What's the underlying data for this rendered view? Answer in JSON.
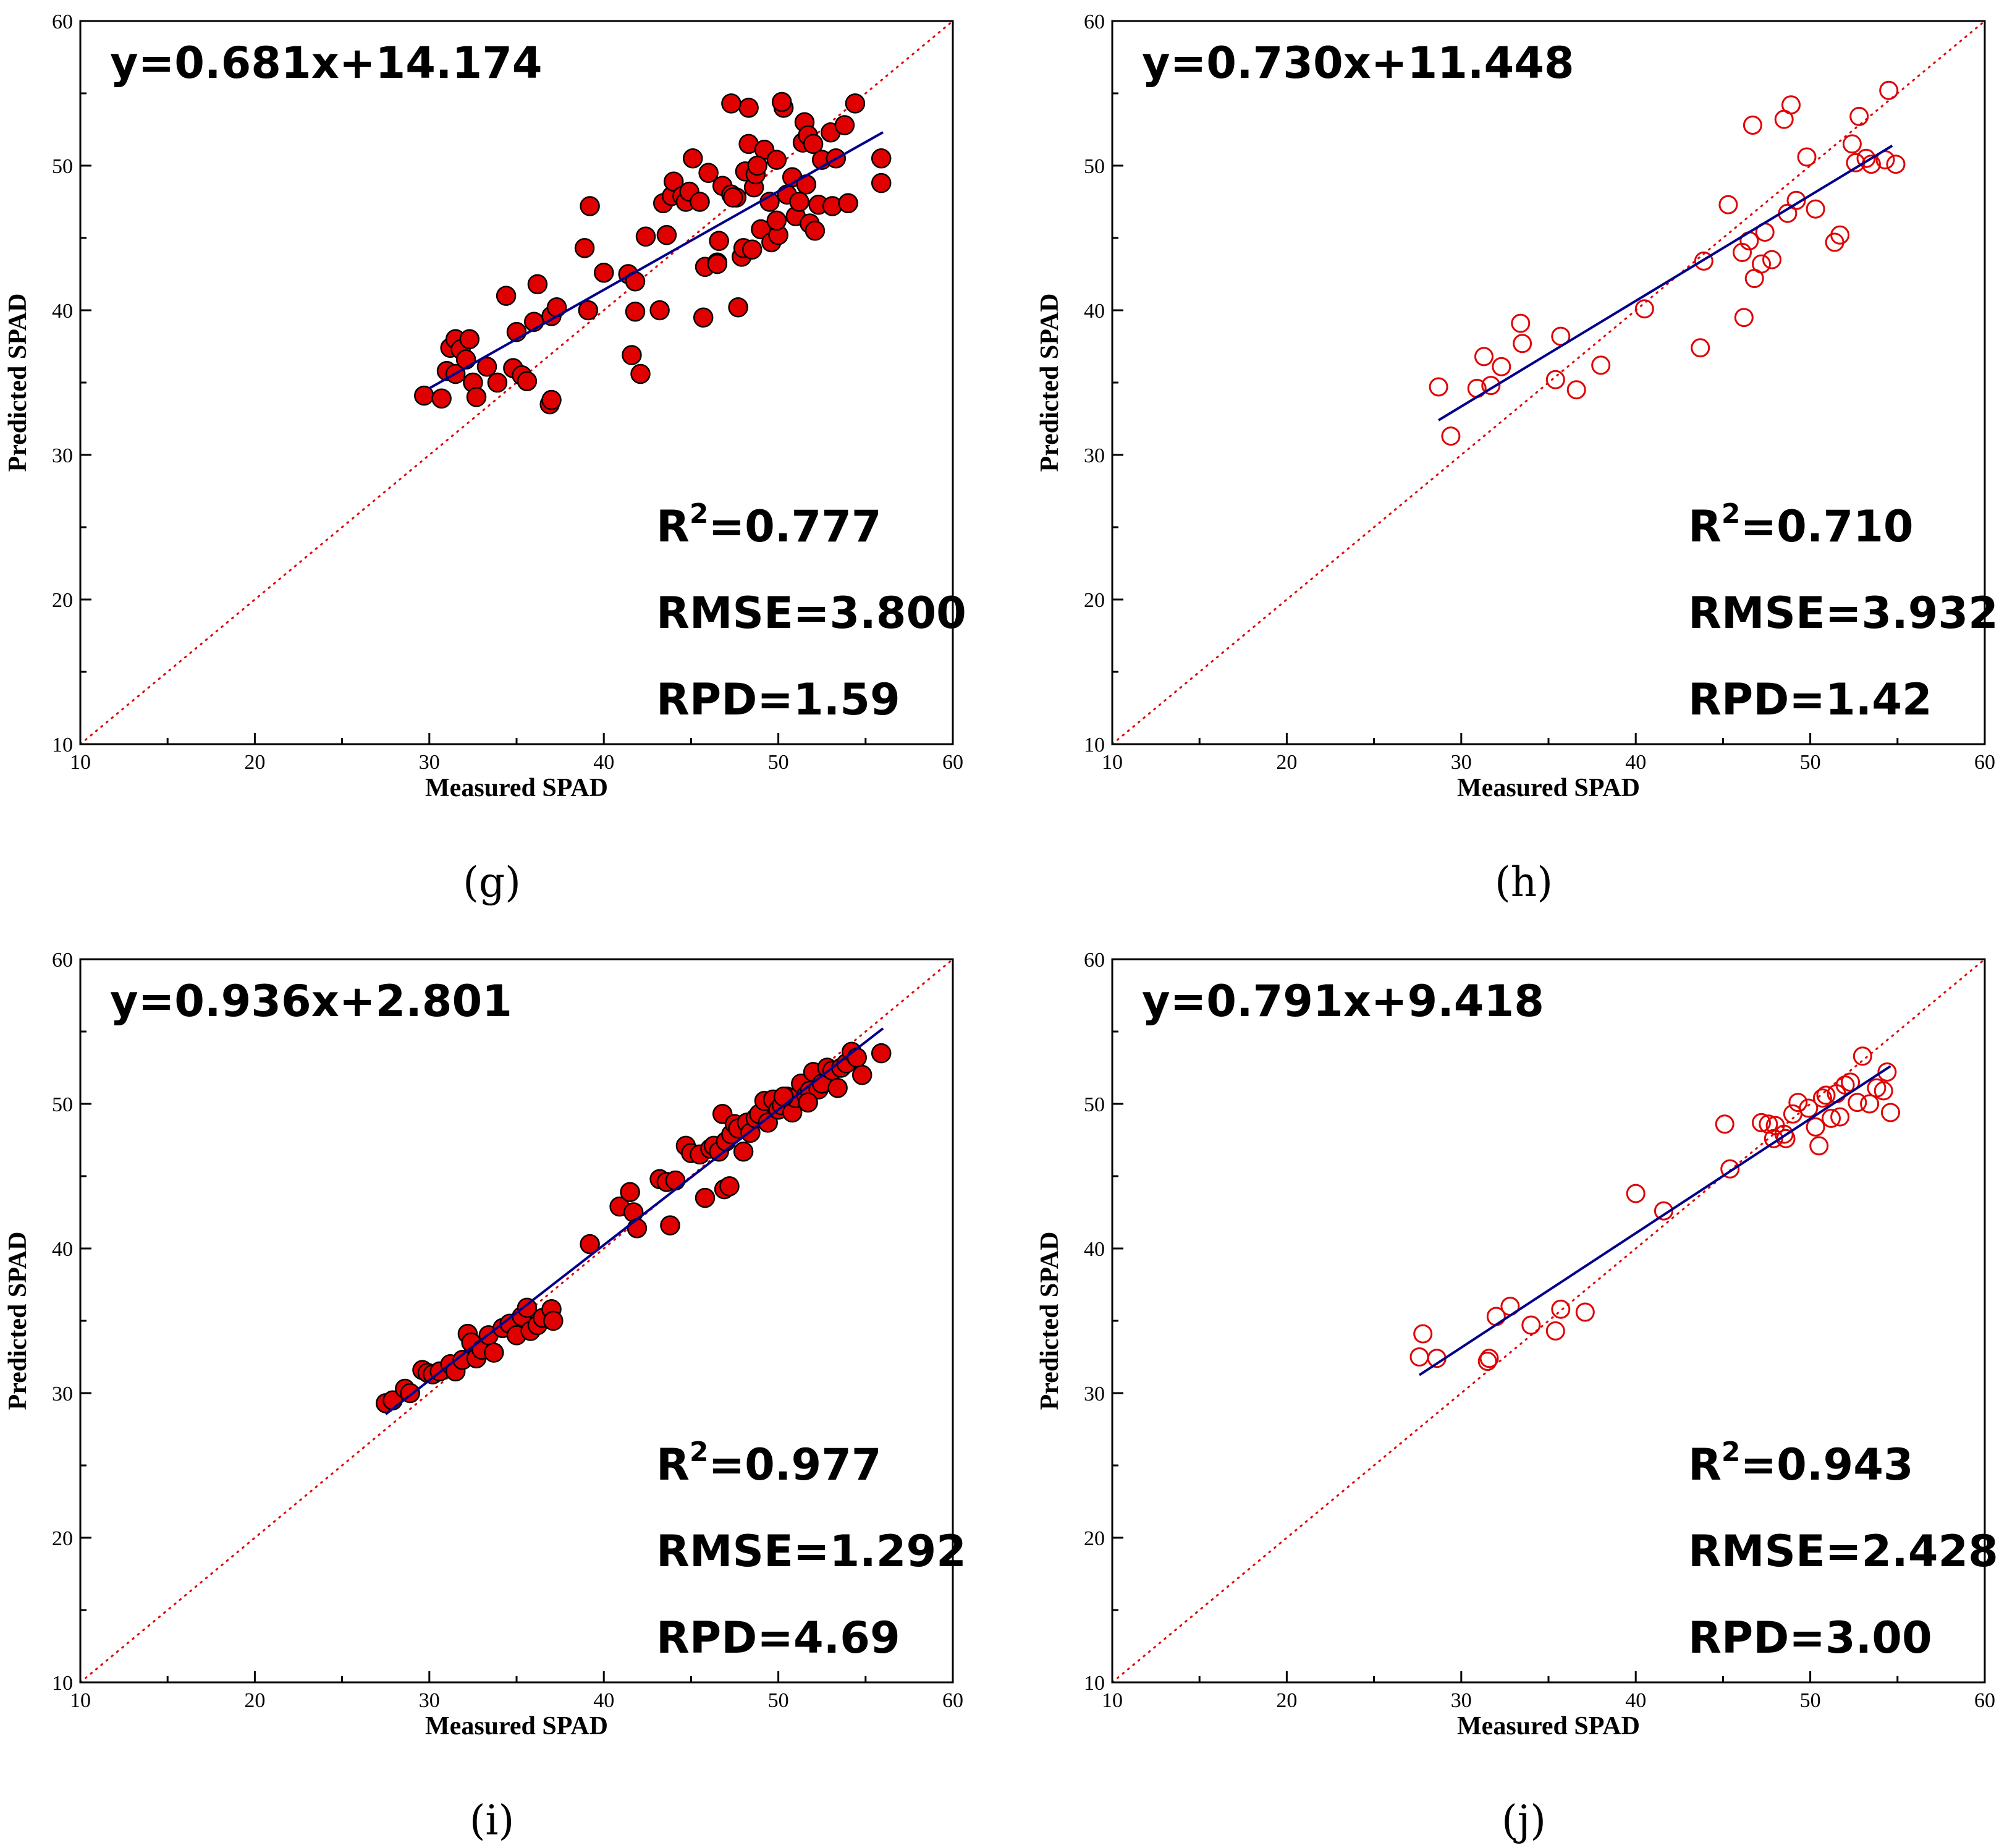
{
  "colors": {
    "point_fill": "#e00000",
    "point_stroke_filled": "#000000",
    "point_stroke_open": "#e00000",
    "fit_line": "#00008b",
    "identity_line": "#e00000",
    "frame": "#000000"
  },
  "chart_data": [
    {
      "panel_label": "(g)",
      "type": "scatter",
      "marker": "filled",
      "xlabel": "Measured SPAD",
      "ylabel": "Predicted SPAD",
      "xlim": [
        10,
        60
      ],
      "ylim": [
        10,
        60
      ],
      "xticks": [
        "10",
        "20",
        "30",
        "40",
        "50",
        "60"
      ],
      "yticks": [
        "10",
        "20",
        "30",
        "40",
        "50",
        "60"
      ],
      "equation": "y=0.681x+14.174",
      "slope": 0.681,
      "intercept": 14.174,
      "fit_x_range": [
        30,
        56
      ],
      "r2_label": "R",
      "r2_sup": "2",
      "r2_value": "=0.777",
      "rmse": "RMSE=3.800",
      "rpd": "RPD=1.59",
      "x": [
        29.7,
        30.7,
        31.0,
        31.2,
        31.5,
        31.5,
        31.8,
        32.1,
        32.3,
        32.5,
        32.7,
        33.3,
        33.9,
        34.4,
        34.8,
        35.0,
        35.3,
        35.6,
        36.0,
        36.2,
        36.9,
        37.0,
        37.0,
        38.9,
        39.1,
        39.2,
        40.0,
        41.4,
        41.6,
        41.8,
        42.1,
        42.4,
        43.2,
        43.4,
        43.6,
        43.9,
        44.0,
        44.5,
        44.7,
        44.9,
        45.1,
        45.5,
        45.7,
        45.8,
        46.0,
        46.5,
        46.6,
        46.8,
        47.3,
        47.6,
        47.7,
        47.9,
        48.0,
        48.1,
        48.3,
        48.5,
        48.6,
        48.7,
        49.0,
        49.2,
        49.5,
        49.6,
        49.9,
        50.0,
        50.3,
        50.5,
        50.8,
        51.0,
        51.2,
        51.4,
        51.5,
        51.6,
        51.7,
        51.8,
        52.0,
        52.1,
        52.3,
        52.5,
        53.0,
        53.1,
        53.3,
        53.8,
        54.0,
        54.4,
        55.9,
        55.9,
        48.3,
        50.2,
        47.3,
        48.8,
        47.4,
        49.9,
        37.3,
        41.8,
        46.5
      ],
      "y": [
        34.1,
        33.9,
        35.8,
        37.4,
        35.6,
        38.0,
        37.3,
        36.6,
        38.0,
        35.0,
        34.0,
        36.1,
        35.0,
        41.0,
        36.0,
        38.5,
        35.5,
        35.1,
        39.2,
        41.8,
        33.5,
        33.8,
        39.6,
        44.3,
        40.0,
        47.2,
        42.6,
        42.5,
        36.9,
        39.9,
        35.6,
        45.1,
        40.0,
        47.4,
        45.2,
        47.9,
        48.9,
        47.9,
        47.5,
        48.2,
        50.5,
        47.5,
        39.5,
        43.0,
        49.5,
        43.3,
        44.8,
        48.6,
        48.0,
        47.8,
        40.2,
        43.7,
        44.3,
        49.6,
        51.5,
        44.2,
        48.5,
        49.4,
        45.6,
        51.1,
        47.5,
        44.7,
        50.4,
        45.2,
        54.0,
        48.0,
        49.2,
        46.5,
        47.5,
        51.6,
        53.0,
        48.7,
        52.1,
        46.0,
        51.5,
        45.5,
        47.3,
        50.4,
        52.3,
        47.2,
        50.5,
        52.8,
        47.4,
        54.3,
        50.5,
        48.8,
        54.0,
        54.4,
        54.3,
        50.0,
        47.8,
        46.2,
        40.2,
        42.0,
        43.2
      ]
    },
    {
      "panel_label": "(h)",
      "type": "scatter",
      "marker": "open",
      "xlabel": "Measured SPAD",
      "ylabel": "Predicted SPAD",
      "xlim": [
        10,
        60
      ],
      "ylim": [
        10,
        60
      ],
      "xticks": [
        "10",
        "20",
        "30",
        "40",
        "50",
        "60"
      ],
      "yticks": [
        "10",
        "20",
        "30",
        "40",
        "50",
        "60"
      ],
      "equation": "y=0.730x+11.448",
      "slope": 0.73,
      "intercept": 11.448,
      "fit_x_range": [
        28.7,
        54.7
      ],
      "r2_label": "R",
      "r2_sup": "2",
      "r2_value": "=0.710",
      "rmse": "RMSE=3.932",
      "rpd": "RPD=1.42",
      "x": [
        28.7,
        29.4,
        30.9,
        31.3,
        31.7,
        32.3,
        33.4,
        33.5,
        35.4,
        35.7,
        36.6,
        38.0,
        40.5,
        43.7,
        43.9,
        45.3,
        46.1,
        46.2,
        46.5,
        46.7,
        46.8,
        47.2,
        47.4,
        47.8,
        48.5,
        48.7,
        48.9,
        49.2,
        49.8,
        50.3,
        51.4,
        51.7,
        52.4,
        52.6,
        52.8,
        53.2,
        53.5,
        54.3,
        54.5,
        54.9
      ],
      "y": [
        34.7,
        31.3,
        34.6,
        36.8,
        34.8,
        36.1,
        39.1,
        37.7,
        35.2,
        38.2,
        34.5,
        36.2,
        40.1,
        37.4,
        43.4,
        47.3,
        44.0,
        39.5,
        44.8,
        52.8,
        42.2,
        43.2,
        45.4,
        43.5,
        53.2,
        46.7,
        54.2,
        47.6,
        50.6,
        47.0,
        44.7,
        45.2,
        51.5,
        50.2,
        53.4,
        50.5,
        50.1,
        50.4,
        55.2,
        50.1
      ]
    },
    {
      "panel_label": "(i)",
      "type": "scatter",
      "marker": "filled",
      "xlabel": "Measured SPAD",
      "ylabel": "Predicted SPAD",
      "xlim": [
        10,
        60
      ],
      "ylim": [
        10,
        60
      ],
      "xticks": [
        "10",
        "20",
        "30",
        "40",
        "50",
        "60"
      ],
      "yticks": [
        "10",
        "20",
        "30",
        "40",
        "50",
        "60"
      ],
      "equation": "y=0.936x+2.801",
      "slope": 0.936,
      "intercept": 2.801,
      "fit_x_range": [
        27.5,
        56
      ],
      "r2_label": "R",
      "r2_sup": "2",
      "r2_value": "=0.977",
      "rmse": "RMSE=1.292",
      "rpd": "RPD=4.69",
      "x": [
        27.5,
        27.9,
        28.6,
        28.9,
        29.6,
        29.9,
        30.2,
        30.6,
        31.2,
        31.5,
        31.9,
        32.2,
        32.4,
        32.7,
        33.0,
        33.4,
        33.7,
        34.2,
        34.6,
        35.0,
        35.3,
        35.6,
        35.8,
        36.2,
        36.5,
        37.0,
        37.1,
        39.2,
        40.9,
        41.5,
        41.7,
        41.9,
        43.2,
        43.6,
        43.8,
        44.1,
        44.7,
        45.0,
        45.5,
        45.8,
        46.1,
        46.3,
        46.6,
        46.8,
        47.0,
        47.3,
        47.5,
        47.7,
        48.0,
        48.2,
        48.4,
        48.7,
        48.9,
        49.2,
        49.4,
        49.7,
        50.0,
        50.2,
        50.5,
        50.8,
        51.0,
        51.3,
        51.6,
        51.8,
        52.0,
        52.3,
        52.5,
        52.8,
        53.1,
        53.4,
        53.6,
        53.9,
        54.2,
        54.5,
        54.8,
        55.9,
        46.9,
        47.2,
        50.3,
        51.7
      ],
      "y": [
        29.3,
        29.5,
        30.3,
        30.0,
        31.6,
        31.4,
        31.3,
        31.5,
        32.0,
        31.5,
        32.3,
        34.1,
        33.5,
        32.4,
        33.0,
        34.0,
        32.8,
        34.5,
        34.8,
        34.0,
        35.3,
        35.9,
        34.3,
        34.7,
        35.2,
        35.8,
        35.0,
        40.3,
        42.9,
        43.9,
        42.5,
        41.4,
        44.8,
        44.6,
        41.6,
        44.7,
        47.1,
        46.6,
        46.5,
        43.5,
        46.9,
        47.1,
        46.7,
        49.3,
        47.4,
        47.9,
        48.6,
        48.3,
        46.7,
        48.7,
        48.0,
        49.0,
        49.3,
        50.2,
        48.7,
        50.3,
        49.6,
        49.9,
        50.5,
        49.4,
        50.4,
        51.4,
        50.6,
        50.9,
        52.2,
        51.0,
        51.4,
        52.5,
        52.3,
        51.1,
        52.5,
        52.8,
        53.6,
        53.2,
        52.0,
        53.5,
        44.1,
        44.3,
        50.5,
        50.1
      ]
    },
    {
      "panel_label": "(j)",
      "type": "scatter",
      "marker": "open",
      "xlabel": "Measured SPAD",
      "ylabel": "Predicted SPAD",
      "xlim": [
        10,
        60
      ],
      "ylim": [
        10,
        60
      ],
      "xticks": [
        "10",
        "20",
        "30",
        "40",
        "50",
        "60"
      ],
      "yticks": [
        "10",
        "20",
        "30",
        "40",
        "50",
        "60"
      ],
      "equation": "y=0.791x+9.418",
      "slope": 0.791,
      "intercept": 9.418,
      "fit_x_range": [
        27.6,
        54.6
      ],
      "r2_label": "R",
      "r2_sup": "2",
      "r2_value": "=0.943",
      "rmse": "RMSE=2.428",
      "rpd": "RPD=3.00",
      "x": [
        27.6,
        27.8,
        28.6,
        31.5,
        31.6,
        32.0,
        32.8,
        34.0,
        35.4,
        35.7,
        37.1,
        40.0,
        41.6,
        45.1,
        45.4,
        47.2,
        47.6,
        47.9,
        48.0,
        48.5,
        48.6,
        49.0,
        49.3,
        49.9,
        50.3,
        50.5,
        50.7,
        50.9,
        51.2,
        51.5,
        51.7,
        52.0,
        52.3,
        52.7,
        53.0,
        53.4,
        53.8,
        54.2,
        54.4,
        54.6
      ],
      "y": [
        32.5,
        34.1,
        32.4,
        32.2,
        32.4,
        35.3,
        36.0,
        34.7,
        34.3,
        35.8,
        35.6,
        43.8,
        42.6,
        48.6,
        45.5,
        48.7,
        48.6,
        47.6,
        48.5,
        47.9,
        47.6,
        49.3,
        50.1,
        49.7,
        48.4,
        47.1,
        50.4,
        50.6,
        49.0,
        50.7,
        49.1,
        51.3,
        51.5,
        50.1,
        53.3,
        50.0,
        51.1,
        50.9,
        52.2,
        49.4
      ]
    }
  ]
}
